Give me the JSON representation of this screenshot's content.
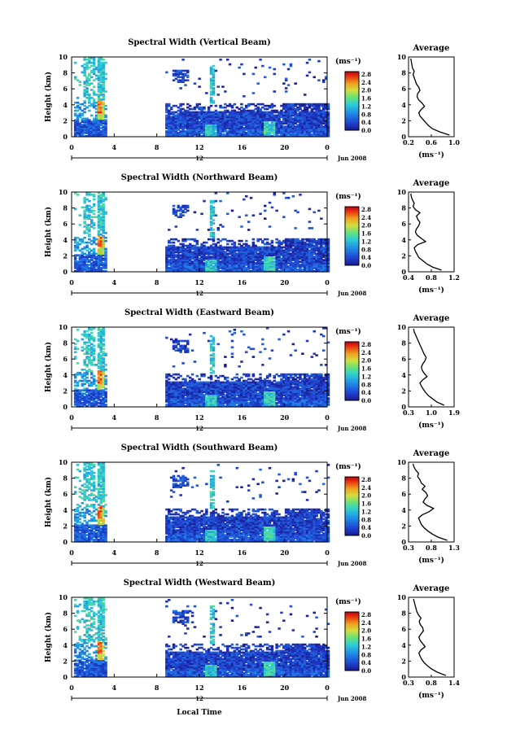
{
  "figure": {
    "xlabel": "Local Time",
    "date_label": "Jun 2008",
    "ylabel": "Height (km)",
    "colorbar_unit": "(ms⁻¹)",
    "colorbar_ticks": [
      "2.8",
      "2.4",
      "2.0",
      "1.6",
      "1.2",
      "0.8",
      "0.4",
      "0.0"
    ],
    "avg_title": "Average",
    "avg_xlabel": "(ms⁻¹)",
    "x_ticks": [
      "0",
      "4",
      "8",
      "12",
      "16",
      "20",
      "0"
    ],
    "y_ticks": [
      "0",
      "2",
      "4",
      "6",
      "8",
      "10"
    ],
    "midnight_label": "12"
  },
  "chart_data": [
    {
      "type": "heatmap",
      "title": "Spectral Width (Vertical Beam)",
      "xlabel": "Local Time",
      "ylabel": "Height (km)",
      "xlim": [
        0,
        24
      ],
      "ylim": [
        0,
        10
      ],
      "clim": [
        0.0,
        2.8
      ],
      "note": "data gap from about 3 to 8 LT",
      "average_profile": {
        "xticks": [
          "0.2",
          "0.6",
          "1.0"
        ],
        "xlim": [
          0.2,
          1.0
        ],
        "height": [
          0.2,
          0.6,
          1.0,
          1.4,
          1.8,
          2.2,
          2.6,
          3.0,
          3.4,
          3.8,
          4.2,
          4.6,
          5.0,
          5.4,
          5.8,
          6.2,
          6.6,
          7.0,
          7.4,
          7.8,
          8.2,
          8.6,
          9.0,
          9.4,
          9.8
        ],
        "width": [
          0.92,
          0.75,
          0.62,
          0.55,
          0.5,
          0.45,
          0.4,
          0.38,
          0.42,
          0.48,
          0.44,
          0.38,
          0.35,
          0.36,
          0.4,
          0.38,
          0.34,
          0.32,
          0.3,
          0.28,
          0.3,
          0.27,
          0.26,
          0.25,
          0.24
        ]
      }
    },
    {
      "type": "heatmap",
      "title": "Spectral Width (Northward Beam)",
      "xlabel": "Local Time",
      "ylabel": "Height (km)",
      "xlim": [
        0,
        24
      ],
      "ylim": [
        0,
        10
      ],
      "clim": [
        0.0,
        2.8
      ],
      "average_profile": {
        "xticks": [
          "0.4",
          "0.8",
          "1.2"
        ],
        "xlim": [
          0.4,
          1.2
        ],
        "height": [
          0.2,
          0.6,
          1.0,
          1.4,
          1.8,
          2.2,
          2.6,
          3.0,
          3.4,
          3.8,
          4.2,
          4.6,
          5.0,
          5.4,
          5.8,
          6.2,
          6.6,
          7.0,
          7.4,
          7.8,
          8.2,
          8.6,
          9.0,
          9.4,
          9.8
        ],
        "width": [
          0.98,
          0.82,
          0.72,
          0.65,
          0.58,
          0.55,
          0.52,
          0.5,
          0.56,
          0.7,
          0.62,
          0.55,
          0.52,
          0.54,
          0.58,
          0.6,
          0.56,
          0.54,
          0.6,
          0.52,
          0.48,
          0.5,
          0.47,
          0.45,
          0.44
        ]
      }
    },
    {
      "type": "heatmap",
      "title": "Spectral Width (Eastward Beam)",
      "xlabel": "Local Time",
      "ylabel": "Height (km)",
      "xlim": [
        0,
        24
      ],
      "ylim": [
        0,
        10
      ],
      "clim": [
        0.0,
        2.8
      ],
      "average_profile": {
        "xticks": [
          "0.3",
          "1.0",
          "1.9"
        ],
        "xlim": [
          0.3,
          1.9
        ],
        "height": [
          0.2,
          0.6,
          1.0,
          1.4,
          1.8,
          2.2,
          2.6,
          3.0,
          3.4,
          3.8,
          4.2,
          4.6,
          5.0,
          5.4,
          5.8,
          6.2,
          6.6,
          7.0,
          7.4,
          7.8,
          8.2,
          8.6,
          9.0,
          9.4,
          9.8
        ],
        "width": [
          1.55,
          1.3,
          1.15,
          1.0,
          0.9,
          0.82,
          0.75,
          0.7,
          0.8,
          0.95,
          0.85,
          0.78,
          0.75,
          0.8,
          0.88,
          0.92,
          0.85,
          0.8,
          0.75,
          0.7,
          0.65,
          0.6,
          0.55,
          0.5,
          0.48
        ]
      }
    },
    {
      "type": "heatmap",
      "title": "Spectral Width (Southward Beam)",
      "xlabel": "Local Time",
      "ylabel": "Height (km)",
      "xlim": [
        0,
        24
      ],
      "ylim": [
        0,
        10
      ],
      "clim": [
        0.0,
        2.8
      ],
      "average_profile": {
        "xticks": [
          "0.3",
          "0.8",
          "1.3"
        ],
        "xlim": [
          0.3,
          1.3
        ],
        "height": [
          0.2,
          0.6,
          1.0,
          1.4,
          1.8,
          2.2,
          2.6,
          3.0,
          3.4,
          3.8,
          4.2,
          4.6,
          5.0,
          5.4,
          5.8,
          6.2,
          6.6,
          7.0,
          7.4,
          7.8,
          8.2,
          8.6,
          9.0,
          9.4,
          9.8
        ],
        "width": [
          1.15,
          0.95,
          0.82,
          0.72,
          0.64,
          0.58,
          0.55,
          0.52,
          0.6,
          0.75,
          0.85,
          0.7,
          0.62,
          0.66,
          0.72,
          0.68,
          0.6,
          0.66,
          0.58,
          0.55,
          0.5,
          0.52,
          0.46,
          0.42,
          0.4
        ]
      }
    },
    {
      "type": "heatmap",
      "title": "Spectral Width (Westward Beam)",
      "xlabel": "Local Time",
      "ylabel": "Height (km)",
      "xlim": [
        0,
        24
      ],
      "ylim": [
        0,
        10
      ],
      "clim": [
        0.0,
        2.8
      ],
      "average_profile": {
        "xticks": [
          "0.3",
          "0.8",
          "1.4"
        ],
        "xlim": [
          0.3,
          1.4
        ],
        "height": [
          0.2,
          0.6,
          1.0,
          1.4,
          1.8,
          2.2,
          2.6,
          3.0,
          3.4,
          3.8,
          4.2,
          4.6,
          5.0,
          5.4,
          5.8,
          6.2,
          6.6,
          7.0,
          7.4,
          7.8,
          8.2,
          8.6,
          9.0,
          9.4,
          9.8
        ],
        "width": [
          1.2,
          1.0,
          0.86,
          0.76,
          0.68,
          0.62,
          0.58,
          0.55,
          0.6,
          0.7,
          0.64,
          0.58,
          0.55,
          0.6,
          0.66,
          0.64,
          0.58,
          0.56,
          0.6,
          0.54,
          0.5,
          0.48,
          0.46,
          0.44,
          0.42
        ]
      }
    }
  ]
}
